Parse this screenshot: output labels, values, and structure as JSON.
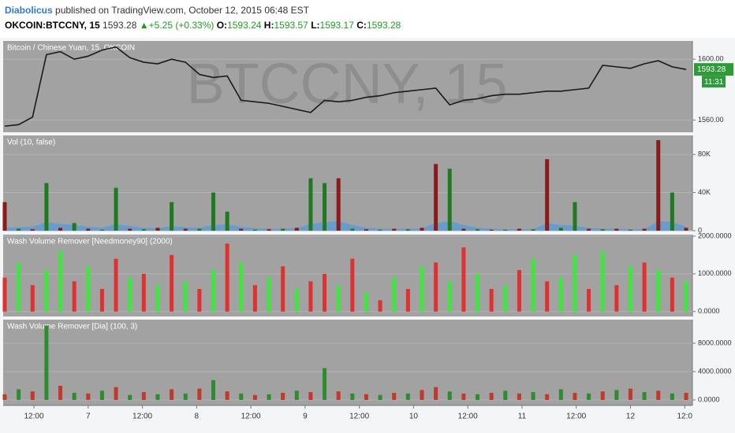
{
  "header": {
    "author": "Diabolicus",
    "published": "published on TradingView.com, October 12, 2015 06:48 EST",
    "symbol": "OKCOIN:BTCCNY, 15",
    "last": "1593.28",
    "change": "▲+5.25 (+0.33%)",
    "o_label": "O:",
    "o": "1593.24",
    "h_label": "H:",
    "h": "1593.57",
    "l_label": "L:",
    "l": "1593.17",
    "c_label": "C:",
    "c": "1593.28"
  },
  "watermark": "BTCCNY, 15",
  "chart_data": [
    {
      "type": "line",
      "title": "Bitcoin / Chinese Yuan, 15, OKCOIN",
      "color": "#1a1a1a",
      "values": [
        1556,
        1557,
        1562,
        1603,
        1605,
        1600,
        1602,
        1606,
        1608,
        1601,
        1598,
        1597,
        1600,
        1598,
        1590,
        1588,
        1589,
        1573,
        1572,
        1571,
        1569,
        1567,
        1565,
        1573,
        1572,
        1573,
        1575,
        1576,
        1578,
        1579,
        1580,
        1581,
        1570,
        1573,
        1574,
        1576,
        1577,
        1577,
        1578,
        1579,
        1579,
        1580,
        1581,
        1596,
        1595,
        1594,
        1597,
        1599,
        1595,
        1593.28
      ],
      "ylim": [
        1552,
        1612
      ],
      "yticks": [
        {
          "value": 1560,
          "label": "1560.00"
        },
        {
          "value": 1600,
          "label": "1600.00"
        }
      ],
      "price_label": "1593.28",
      "countdown": "11:31"
    },
    {
      "type": "bar",
      "title": "Vol (10, false)",
      "values": [
        30000,
        2000,
        1500,
        50000,
        3000,
        8000,
        2000,
        1000,
        45000,
        2000,
        1500,
        3000,
        30000,
        2000,
        2000,
        40000,
        20000,
        2000,
        1000,
        1500,
        2000,
        3000,
        55000,
        50000,
        55000,
        2000,
        1500,
        1000,
        2000,
        1500,
        3000,
        70000,
        65000,
        2000,
        1500,
        1000,
        1000,
        2000,
        1500,
        75000,
        3000,
        30000,
        2000,
        1500,
        2000,
        1000,
        2000,
        95000,
        40000,
        3000
      ],
      "colors": [
        "#8b1a1a",
        "#1f7a1f",
        "#8b1a1a",
        "#1f7a1f",
        "#8b1a1a",
        "#1f7a1f",
        "#8b1a1a",
        "#1f7a1f",
        "#1f7a1f",
        "#8b1a1a",
        "#1f7a1f",
        "#8b1a1a",
        "#1f7a1f",
        "#8b1a1a",
        "#1f7a1f",
        "#1f7a1f",
        "#1f7a1f",
        "#8b1a1a",
        "#1f7a1f",
        "#8b1a1a",
        "#1f7a1f",
        "#8b1a1a",
        "#1f7a1f",
        "#1f7a1f",
        "#8b1a1a",
        "#1f7a1f",
        "#8b1a1a",
        "#1f7a1f",
        "#8b1a1a",
        "#1f7a1f",
        "#8b1a1a",
        "#8b1a1a",
        "#1f7a1f",
        "#8b1a1a",
        "#1f7a1f",
        "#8b1a1a",
        "#1f7a1f",
        "#8b1a1a",
        "#1f7a1f",
        "#8b1a1a",
        "#1f7a1f",
        "#1f7a1f",
        "#8b1a1a",
        "#1f7a1f",
        "#8b1a1a",
        "#1f7a1f",
        "#8b1a1a",
        "#8b1a1a",
        "#1f7a1f",
        "#8b1a1a"
      ],
      "ma": {
        "color": "#5b9bd5",
        "values": [
          3000,
          3500,
          4000,
          9000,
          7000,
          6000,
          4000,
          3000,
          7000,
          5000,
          3000,
          2500,
          5000,
          3500,
          3000,
          6000,
          6500,
          4000,
          2500,
          2000,
          2000,
          2500,
          7000,
          9000,
          10000,
          6000,
          3000,
          2000,
          2000,
          2000,
          2500,
          8000,
          10000,
          6000,
          3000,
          2000,
          1500,
          1500,
          1500,
          8000,
          6000,
          5000,
          3000,
          2000,
          2000,
          1500,
          1500,
          10000,
          9000,
          4000
        ]
      },
      "ylim": [
        0,
        100000
      ],
      "yticks": [
        0,
        {
          "value": 40000,
          "label": "40K"
        },
        {
          "value": 80000,
          "label": "80K"
        }
      ]
    },
    {
      "type": "bar",
      "title": "Wash Volume Remover [Needmoney90] (2000)",
      "values": [
        900,
        1300,
        700,
        1100,
        1600,
        800,
        1200,
        600,
        1400,
        900,
        1000,
        700,
        1500,
        800,
        600,
        1100,
        1800,
        1300,
        700,
        900,
        1200,
        600,
        800,
        1000,
        700,
        1400,
        500,
        300,
        900,
        600,
        1200,
        1300,
        800,
        1700,
        1000,
        600,
        700,
        1100,
        1400,
        800,
        900,
        1500,
        600,
        1600,
        700,
        1200,
        1300,
        1100,
        900,
        800
      ],
      "colors": [
        "#e03030",
        "#3ee63e",
        "#e03030",
        "#3ee63e",
        "#3ee63e",
        "#e03030",
        "#3ee63e",
        "#e03030",
        "#e03030",
        "#3ee63e",
        "#e03030",
        "#3ee63e",
        "#e03030",
        "#3ee63e",
        "#e03030",
        "#3ee63e",
        "#e03030",
        "#3ee63e",
        "#e03030",
        "#3ee63e",
        "#e03030",
        "#3ee63e",
        "#e03030",
        "#e03030",
        "#3ee63e",
        "#e03030",
        "#3ee63e",
        "#e03030",
        "#3ee63e",
        "#e03030",
        "#3ee63e",
        "#e03030",
        "#3ee63e",
        "#e03030",
        "#3ee63e",
        "#e03030",
        "#3ee63e",
        "#e03030",
        "#3ee63e",
        "#e03030",
        "#3ee63e",
        "#3ee63e",
        "#e03030",
        "#3ee63e",
        "#e03030",
        "#3ee63e",
        "#e03030",
        "#3ee63e",
        "#e03030",
        "#3ee63e"
      ],
      "ylim": [
        -130,
        2040
      ],
      "yticks": [
        {
          "value": 0,
          "label": "0.0000"
        },
        {
          "value": 1000,
          "label": "1000.0000"
        },
        {
          "value": 2000,
          "label": "2000.0000"
        }
      ]
    },
    {
      "type": "bar",
      "title": "Wash Volume Remover [Dia] (100, 3)",
      "values": [
        800,
        1500,
        1200,
        10500,
        2000,
        1000,
        900,
        1300,
        1800,
        700,
        1100,
        800,
        1500,
        900,
        1600,
        2800,
        1200,
        900,
        700,
        800,
        1000,
        1300,
        1100,
        4500,
        1200,
        900,
        800,
        700,
        1000,
        900,
        1400,
        1800,
        1200,
        900,
        800,
        1000,
        1300,
        900,
        1100,
        800,
        1500,
        1000,
        900,
        1200,
        1400,
        1600,
        1100,
        1300,
        900,
        1000
      ],
      "colors": [
        "#c0392b",
        "#2e8b2e",
        "#c0392b",
        "#2e8b2e",
        "#c0392b",
        "#2e8b2e",
        "#c0392b",
        "#2e8b2e",
        "#c0392b",
        "#2e8b2e",
        "#c0392b",
        "#2e8b2e",
        "#c0392b",
        "#2e8b2e",
        "#c0392b",
        "#2e8b2e",
        "#c0392b",
        "#2e8b2e",
        "#c0392b",
        "#2e8b2e",
        "#c0392b",
        "#2e8b2e",
        "#c0392b",
        "#2e8b2e",
        "#c0392b",
        "#2e8b2e",
        "#c0392b",
        "#2e8b2e",
        "#c0392b",
        "#2e8b2e",
        "#c0392b",
        "#c0392b",
        "#2e8b2e",
        "#c0392b",
        "#2e8b2e",
        "#c0392b",
        "#2e8b2e",
        "#c0392b",
        "#2e8b2e",
        "#c0392b",
        "#2e8b2e",
        "#c0392b",
        "#2e8b2e",
        "#c0392b",
        "#2e8b2e",
        "#c0392b",
        "#2e8b2e",
        "#c0392b",
        "#2e8b2e",
        "#c0392b"
      ],
      "ylim": [
        -780,
        11330
      ],
      "yticks": [
        {
          "value": 0,
          "label": "0.0000"
        },
        {
          "value": 4000,
          "label": "4000.0000"
        },
        {
          "value": 8000,
          "label": "8000.0000"
        }
      ],
      "xlim": [
        0,
        49
      ],
      "xticks": [
        {
          "value": 2.1,
          "label": "12:00"
        },
        {
          "value": 6.0,
          "label": "7"
        },
        {
          "value": 9.9,
          "label": "12:00"
        },
        {
          "value": 13.8,
          "label": "8"
        },
        {
          "value": 17.7,
          "label": "12:00"
        },
        {
          "value": 21.6,
          "label": "9"
        },
        {
          "value": 25.5,
          "label": "12:00"
        },
        {
          "value": 29.4,
          "label": "10"
        },
        {
          "value": 33.3,
          "label": "12:00"
        },
        {
          "value": 37.2,
          "label": "11"
        },
        {
          "value": 41.1,
          "label": "12:00"
        },
        {
          "value": 45.0,
          "label": "12"
        },
        {
          "value": 48.9,
          "label": "12:0"
        }
      ]
    }
  ]
}
